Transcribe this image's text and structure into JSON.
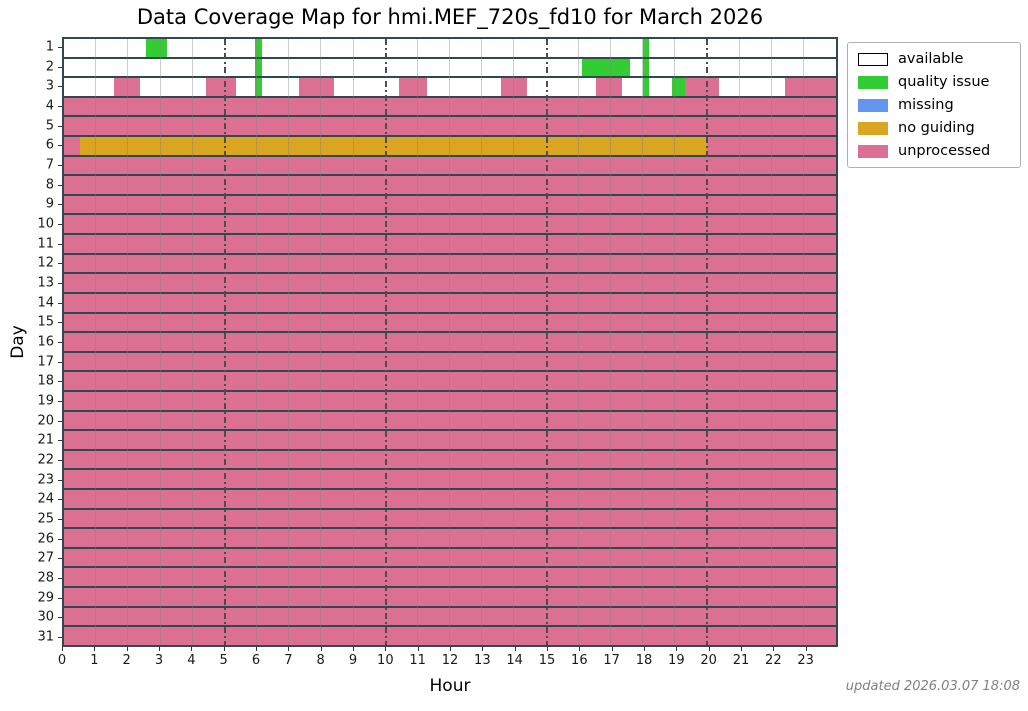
{
  "footer": {
    "text": "updated 2026.03.07 18:08"
  },
  "chart_data": {
    "type": "heatmap",
    "title": "Data Coverage Map for hmi.MEF_720s_fd10 for March 2026",
    "xlabel": "Hour",
    "ylabel": "Day",
    "x_range": [
      0,
      24
    ],
    "x_ticks": [
      0,
      1,
      2,
      3,
      4,
      5,
      6,
      7,
      8,
      9,
      10,
      11,
      12,
      13,
      14,
      15,
      16,
      17,
      18,
      19,
      20,
      21,
      22,
      23
    ],
    "y_ticks": [
      1,
      2,
      3,
      4,
      5,
      6,
      7,
      8,
      9,
      10,
      11,
      12,
      13,
      14,
      15,
      16,
      17,
      18,
      19,
      20,
      21,
      22,
      23,
      24,
      25,
      26,
      27,
      28,
      29,
      30,
      31
    ],
    "grid": {
      "hour_lines": true,
      "dashdot_hours": [
        5,
        10,
        15,
        20
      ]
    },
    "default_status": "available",
    "status_colors": {
      "available": "#ffffff",
      "quality issue": "#32cd32",
      "missing": "#6495ed",
      "no guiding": "#daa520",
      "unprocessed": "#db7093"
    },
    "legend": {
      "position": "outside upper right",
      "entries": [
        {
          "label": "available",
          "color": "#ffffff",
          "border": "#000000"
        },
        {
          "label": "quality issue",
          "color": "#32cd32"
        },
        {
          "label": "missing",
          "color": "#6495ed"
        },
        {
          "label": "no guiding",
          "color": "#daa520"
        },
        {
          "label": "unprocessed",
          "color": "#db7093"
        }
      ]
    },
    "coverage": [
      {
        "day": 1,
        "segments": [
          {
            "from": 2.55,
            "to": 3.2,
            "status": "quality issue"
          },
          {
            "from": 5.95,
            "to": 6.15,
            "status": "quality issue"
          },
          {
            "from": 18.0,
            "to": 18.2,
            "status": "quality issue"
          }
        ]
      },
      {
        "day": 2,
        "segments": [
          {
            "from": 5.95,
            "to": 6.15,
            "status": "quality issue"
          },
          {
            "from": 16.1,
            "to": 17.6,
            "status": "quality issue"
          },
          {
            "from": 18.0,
            "to": 18.2,
            "status": "quality issue"
          }
        ]
      },
      {
        "day": 3,
        "segments": [
          {
            "from": 1.55,
            "to": 2.35,
            "status": "unprocessed"
          },
          {
            "from": 4.4,
            "to": 5.35,
            "status": "unprocessed"
          },
          {
            "from": 5.95,
            "to": 6.15,
            "status": "quality issue"
          },
          {
            "from": 7.3,
            "to": 8.4,
            "status": "unprocessed"
          },
          {
            "from": 10.4,
            "to": 11.3,
            "status": "unprocessed"
          },
          {
            "from": 13.6,
            "to": 14.4,
            "status": "unprocessed"
          },
          {
            "from": 16.55,
            "to": 17.35,
            "status": "unprocessed"
          },
          {
            "from": 18.0,
            "to": 18.2,
            "status": "quality issue"
          },
          {
            "from": 18.9,
            "to": 19.3,
            "status": "quality issue"
          },
          {
            "from": 19.3,
            "to": 20.35,
            "status": "unprocessed"
          },
          {
            "from": 22.4,
            "to": 24,
            "status": "unprocessed"
          }
        ]
      },
      {
        "day": 4,
        "segments": [
          {
            "from": 0,
            "to": 24,
            "status": "unprocessed"
          }
        ]
      },
      {
        "day": 5,
        "segments": [
          {
            "from": 0,
            "to": 24,
            "status": "unprocessed"
          }
        ]
      },
      {
        "day": 6,
        "segments": [
          {
            "from": 0,
            "to": 0.5,
            "status": "unprocessed"
          },
          {
            "from": 0.5,
            "to": 20,
            "status": "no guiding"
          },
          {
            "from": 20,
            "to": 24,
            "status": "unprocessed"
          }
        ]
      },
      {
        "day": 7,
        "segments": [
          {
            "from": 0,
            "to": 24,
            "status": "unprocessed"
          }
        ]
      },
      {
        "day": 8,
        "segments": [
          {
            "from": 0,
            "to": 24,
            "status": "unprocessed"
          }
        ]
      },
      {
        "day": 9,
        "segments": [
          {
            "from": 0,
            "to": 24,
            "status": "unprocessed"
          }
        ]
      },
      {
        "day": 10,
        "segments": [
          {
            "from": 0,
            "to": 24,
            "status": "unprocessed"
          }
        ]
      },
      {
        "day": 11,
        "segments": [
          {
            "from": 0,
            "to": 24,
            "status": "unprocessed"
          }
        ]
      },
      {
        "day": 12,
        "segments": [
          {
            "from": 0,
            "to": 24,
            "status": "unprocessed"
          }
        ]
      },
      {
        "day": 13,
        "segments": [
          {
            "from": 0,
            "to": 24,
            "status": "unprocessed"
          }
        ]
      },
      {
        "day": 14,
        "segments": [
          {
            "from": 0,
            "to": 24,
            "status": "unprocessed"
          }
        ]
      },
      {
        "day": 15,
        "segments": [
          {
            "from": 0,
            "to": 24,
            "status": "unprocessed"
          }
        ]
      },
      {
        "day": 16,
        "segments": [
          {
            "from": 0,
            "to": 24,
            "status": "unprocessed"
          }
        ]
      },
      {
        "day": 17,
        "segments": [
          {
            "from": 0,
            "to": 24,
            "status": "unprocessed"
          }
        ]
      },
      {
        "day": 18,
        "segments": [
          {
            "from": 0,
            "to": 24,
            "status": "unprocessed"
          }
        ]
      },
      {
        "day": 19,
        "segments": [
          {
            "from": 0,
            "to": 24,
            "status": "unprocessed"
          }
        ]
      },
      {
        "day": 20,
        "segments": [
          {
            "from": 0,
            "to": 24,
            "status": "unprocessed"
          }
        ]
      },
      {
        "day": 21,
        "segments": [
          {
            "from": 0,
            "to": 24,
            "status": "unprocessed"
          }
        ]
      },
      {
        "day": 22,
        "segments": [
          {
            "from": 0,
            "to": 24,
            "status": "unprocessed"
          }
        ]
      },
      {
        "day": 23,
        "segments": [
          {
            "from": 0,
            "to": 24,
            "status": "unprocessed"
          }
        ]
      },
      {
        "day": 24,
        "segments": [
          {
            "from": 0,
            "to": 24,
            "status": "unprocessed"
          }
        ]
      },
      {
        "day": 25,
        "segments": [
          {
            "from": 0,
            "to": 24,
            "status": "unprocessed"
          }
        ]
      },
      {
        "day": 26,
        "segments": [
          {
            "from": 0,
            "to": 24,
            "status": "unprocessed"
          }
        ]
      },
      {
        "day": 27,
        "segments": [
          {
            "from": 0,
            "to": 24,
            "status": "unprocessed"
          }
        ]
      },
      {
        "day": 28,
        "segments": [
          {
            "from": 0,
            "to": 24,
            "status": "unprocessed"
          }
        ]
      },
      {
        "day": 29,
        "segments": [
          {
            "from": 0,
            "to": 24,
            "status": "unprocessed"
          }
        ]
      },
      {
        "day": 30,
        "segments": [
          {
            "from": 0,
            "to": 24,
            "status": "unprocessed"
          }
        ]
      },
      {
        "day": 31,
        "segments": [
          {
            "from": 0,
            "to": 24,
            "status": "unprocessed"
          }
        ]
      }
    ]
  }
}
